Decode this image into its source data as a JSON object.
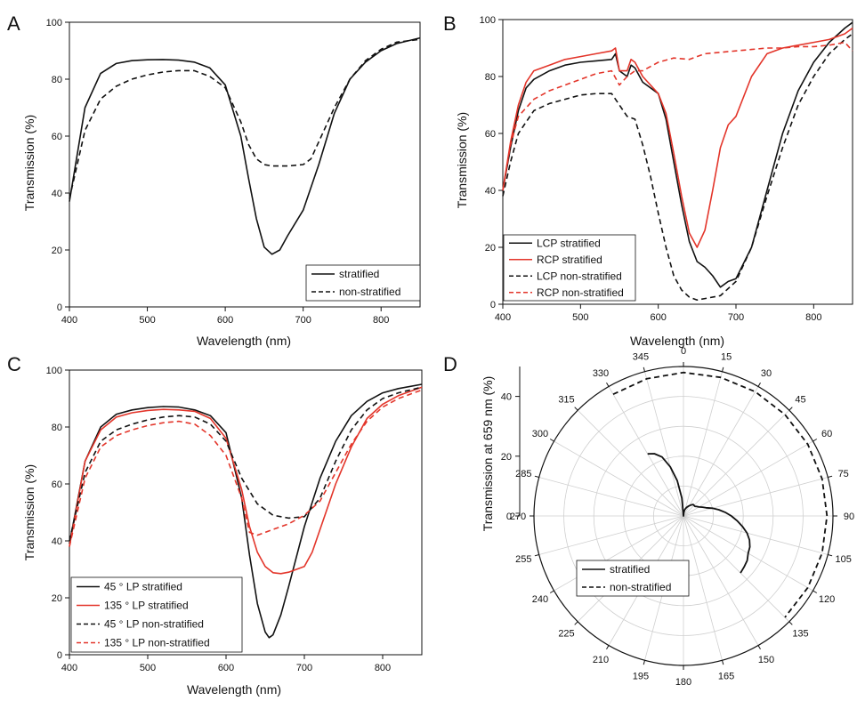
{
  "colors": {
    "black": "#111111",
    "red": "#e3352a",
    "grid": "#bdbdbd"
  },
  "chart_data": [
    {
      "panel": "A",
      "type": "line",
      "xlabel": "Wavelength (nm)",
      "ylabel": "Transmission (%)",
      "xlim": [
        400,
        850
      ],
      "ylim": [
        0,
        100
      ],
      "xticks": [
        400,
        500,
        600,
        700,
        800
      ],
      "yticks": [
        0,
        20,
        40,
        60,
        80,
        100
      ],
      "legend_position": "bottom-right",
      "series": [
        {
          "name": "stratified",
          "color": "#111111",
          "dash": "solid",
          "x": [
            400,
            420,
            440,
            460,
            480,
            500,
            520,
            540,
            560,
            580,
            600,
            620,
            630,
            640,
            650,
            660,
            670,
            680,
            700,
            720,
            740,
            760,
            780,
            800,
            820,
            850
          ],
          "y": [
            37,
            70,
            82,
            85.5,
            86.5,
            86.8,
            86.9,
            86.7,
            86,
            84,
            78,
            60,
            45,
            31,
            21,
            18.5,
            20,
            25,
            34,
            50,
            68,
            80,
            86,
            90,
            92.5,
            94.5
          ]
        },
        {
          "name": "non-stratified",
          "color": "#111111",
          "dash": "dashed",
          "x": [
            400,
            420,
            440,
            460,
            480,
            500,
            520,
            540,
            560,
            580,
            600,
            620,
            630,
            640,
            650,
            660,
            680,
            700,
            710,
            720,
            740,
            760,
            780,
            800,
            820,
            850
          ],
          "y": [
            38,
            62,
            73,
            77.5,
            80,
            81.5,
            82.5,
            83,
            83,
            81,
            77,
            65,
            57,
            52,
            50,
            49.5,
            49.5,
            50,
            52,
            58,
            70,
            80,
            86.5,
            90.5,
            93,
            94
          ]
        }
      ]
    },
    {
      "panel": "B",
      "type": "line",
      "xlabel": "Wavelength (nm)",
      "ylabel": "Transmission (%)",
      "xlim": [
        400,
        850
      ],
      "ylim": [
        0,
        100
      ],
      "xticks": [
        400,
        500,
        600,
        700,
        800
      ],
      "yticks": [
        0,
        20,
        40,
        60,
        80,
        100
      ],
      "legend_position": "bottom-left",
      "series": [
        {
          "name": "LCP stratified",
          "color": "#111111",
          "dash": "solid",
          "x": [
            400,
            410,
            420,
            430,
            440,
            460,
            480,
            500,
            520,
            540,
            545,
            550,
            560,
            565,
            570,
            580,
            600,
            610,
            620,
            630,
            640,
            650,
            660,
            670,
            680,
            690,
            700,
            720,
            740,
            760,
            780,
            800,
            820,
            840,
            850
          ],
          "y": [
            40,
            55,
            68,
            76,
            79,
            82,
            84,
            85,
            85.5,
            86,
            88,
            82,
            80,
            84,
            83,
            78,
            74,
            65,
            50,
            35,
            22,
            15,
            13,
            10,
            6,
            8,
            9,
            20,
            40,
            60,
            75,
            85,
            92,
            97,
            99
          ]
        },
        {
          "name": "RCP stratified",
          "color": "#e3352a",
          "dash": "solid",
          "x": [
            400,
            410,
            420,
            430,
            440,
            460,
            480,
            500,
            520,
            540,
            545,
            550,
            560,
            565,
            570,
            580,
            600,
            610,
            620,
            630,
            640,
            650,
            660,
            670,
            680,
            690,
            700,
            720,
            740,
            760,
            780,
            800,
            820,
            840,
            850
          ],
          "y": [
            40,
            57,
            70,
            78,
            82,
            84,
            86,
            87,
            88,
            89,
            90,
            82,
            82,
            86,
            85,
            80,
            74,
            67,
            53,
            38,
            25,
            20,
            26,
            40,
            55,
            63,
            66,
            80,
            88,
            90,
            91,
            92,
            93,
            95,
            97
          ]
        },
        {
          "name": "LCP non-stratified",
          "color": "#111111",
          "dash": "dashed",
          "x": [
            400,
            410,
            420,
            440,
            460,
            480,
            500,
            520,
            540,
            550,
            560,
            570,
            580,
            590,
            600,
            610,
            620,
            630,
            640,
            650,
            660,
            680,
            700,
            720,
            740,
            760,
            780,
            800,
            820,
            840,
            850
          ],
          "y": [
            38,
            50,
            60,
            68,
            70.5,
            72,
            73.5,
            74,
            74,
            70,
            66,
            65,
            56,
            45,
            32,
            20,
            10,
            5,
            2.5,
            1.5,
            2,
            3,
            8,
            20,
            38,
            55,
            70,
            80,
            88,
            93,
            95
          ]
        },
        {
          "name": "RCP non-stratified",
          "color": "#e3352a",
          "dash": "dashed",
          "x": [
            400,
            410,
            420,
            440,
            460,
            480,
            500,
            520,
            540,
            550,
            560,
            570,
            580,
            600,
            620,
            640,
            660,
            680,
            700,
            720,
            740,
            760,
            780,
            800,
            820,
            840,
            850
          ],
          "y": [
            40,
            56,
            66,
            72,
            75,
            77,
            79,
            81,
            82,
            77,
            80,
            82,
            82,
            85,
            86.5,
            86,
            88,
            88.5,
            89,
            89.5,
            90,
            90,
            90.5,
            90.5,
            91,
            92,
            89
          ]
        }
      ]
    },
    {
      "panel": "C",
      "type": "line",
      "xlabel": "Wavelength (nm)",
      "ylabel": "Transmission (%)",
      "xlim": [
        400,
        850
      ],
      "ylim": [
        0,
        100
      ],
      "xticks": [
        400,
        500,
        600,
        700,
        800
      ],
      "yticks": [
        0,
        20,
        40,
        60,
        80,
        100
      ],
      "legend_position": "bottom-left",
      "series": [
        {
          "name": "45 ° LP stratified",
          "color": "#111111",
          "dash": "solid",
          "x": [
            400,
            420,
            440,
            460,
            480,
            500,
            520,
            540,
            560,
            580,
            600,
            620,
            630,
            640,
            650,
            655,
            660,
            670,
            680,
            700,
            720,
            740,
            760,
            780,
            800,
            820,
            850
          ],
          "y": [
            39,
            68,
            80,
            84.5,
            86,
            86.8,
            87.2,
            87,
            86,
            84,
            78,
            55,
            35,
            18,
            8,
            6,
            7,
            14,
            24,
            45,
            62,
            75,
            84,
            89,
            92,
            93.5,
            95
          ]
        },
        {
          "name": "135 ° LP stratified",
          "color": "#e3352a",
          "dash": "solid",
          "x": [
            400,
            420,
            440,
            460,
            480,
            500,
            520,
            540,
            560,
            580,
            600,
            620,
            630,
            640,
            650,
            660,
            670,
            680,
            700,
            710,
            720,
            740,
            760,
            780,
            800,
            820,
            850
          ],
          "y": [
            38,
            68,
            79,
            83.5,
            85,
            85.8,
            86.2,
            86,
            85.5,
            83,
            76,
            58,
            45,
            36,
            31,
            28.8,
            28.5,
            29,
            31,
            36,
            44,
            60,
            73,
            83,
            88,
            91,
            94
          ]
        },
        {
          "name": "45 ° LP non-stratified",
          "color": "#111111",
          "dash": "dashed",
          "x": [
            400,
            420,
            440,
            460,
            480,
            500,
            520,
            540,
            560,
            580,
            600,
            620,
            640,
            660,
            680,
            700,
            720,
            740,
            760,
            780,
            800,
            820,
            850
          ],
          "y": [
            40,
            64,
            75,
            79,
            81,
            82.5,
            83.5,
            84,
            83.5,
            81,
            75,
            62,
            53,
            49,
            48,
            48.5,
            55,
            68,
            79,
            86,
            90,
            92,
            94
          ]
        },
        {
          "name": "135 ° LP non-stratified",
          "color": "#e3352a",
          "dash": "dashed",
          "x": [
            400,
            420,
            440,
            460,
            480,
            500,
            520,
            540,
            560,
            580,
            600,
            620,
            630,
            640,
            660,
            680,
            700,
            720,
            740,
            760,
            780,
            800,
            820,
            850
          ],
          "y": [
            38,
            62,
            73,
            77,
            79,
            80.5,
            81.5,
            82,
            81,
            77,
            70,
            55,
            43,
            42,
            44,
            46,
            49,
            54,
            64,
            74,
            82,
            87,
            90,
            93
          ]
        }
      ]
    },
    {
      "panel": "D",
      "type": "polar",
      "ylabel": "Transmission at 659 nm (%)",
      "rlim": [
        0,
        50
      ],
      "rticks": [
        0,
        20,
        40
      ],
      "angle_ticks": [
        0,
        15,
        30,
        45,
        60,
        75,
        90,
        105,
        120,
        135,
        150,
        165,
        180,
        195,
        210,
        225,
        240,
        255,
        270,
        285,
        300,
        315,
        330,
        345
      ],
      "legend_position": "lower-left",
      "series": [
        {
          "name": "stratified",
          "color": "#111111",
          "dash": "solid",
          "theta": [
            330,
            335,
            340,
            345,
            350,
            355,
            0,
            5,
            10,
            15,
            20,
            25,
            30,
            35,
            40,
            45,
            50,
            55,
            60,
            65,
            70,
            75,
            80,
            85,
            90,
            95,
            100,
            105,
            110,
            115,
            120,
            125,
            130,
            135
          ],
          "r": [
            24,
            23,
            21,
            17,
            12,
            6,
            0,
            1,
            2,
            2.5,
            3,
            3.5,
            4,
            4.5,
            5,
            5,
            5,
            5.5,
            6,
            7,
            8,
            10,
            12,
            14,
            16,
            18,
            20,
            22,
            23.5,
            24.5,
            25,
            26,
            26.5,
            27
          ]
        },
        {
          "name": "non-stratified",
          "color": "#111111",
          "dash": "dashed",
          "theta": [
            330,
            345,
            0,
            15,
            30,
            45,
            60,
            75,
            90,
            105,
            120,
            135
          ],
          "r": [
            47,
            47.5,
            48,
            48,
            48,
            48,
            48,
            48,
            48,
            48,
            48,
            48
          ]
        }
      ]
    }
  ]
}
